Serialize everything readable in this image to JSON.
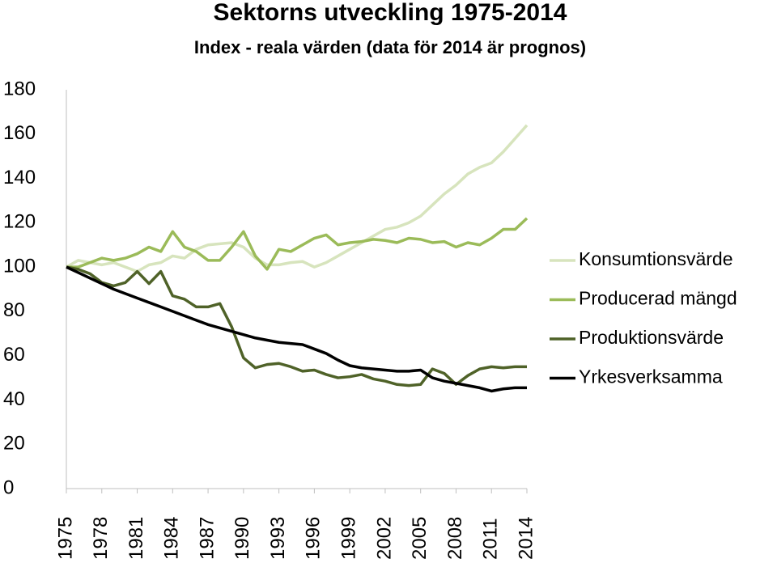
{
  "chart_data": {
    "type": "line",
    "title": "Sektorns utveckling 1975-2014",
    "subtitle": "Index - reala värden (data för 2014 är prognos)",
    "x": [
      1975,
      1976,
      1977,
      1978,
      1979,
      1980,
      1981,
      1982,
      1983,
      1984,
      1985,
      1986,
      1987,
      1988,
      1989,
      1990,
      1991,
      1992,
      1993,
      1994,
      1995,
      1996,
      1997,
      1998,
      1999,
      2000,
      2001,
      2002,
      2003,
      2004,
      2005,
      2006,
      2007,
      2008,
      2009,
      2010,
      2011,
      2012,
      2013,
      2014
    ],
    "xlim": [
      1975,
      2014
    ],
    "xticks": [
      1975,
      1978,
      1981,
      1984,
      1987,
      1990,
      1993,
      1996,
      1999,
      2002,
      2005,
      2008,
      2011,
      2014
    ],
    "ylim": [
      0,
      180
    ],
    "yticks": [
      0,
      20,
      40,
      60,
      80,
      100,
      120,
      140,
      160,
      180
    ],
    "grid": false,
    "legend": "right",
    "series": [
      {
        "name": "Konsumtionsvärde",
        "color": "#d7e4bd",
        "values": [
          100,
          103,
          102,
          101,
          102,
          100,
          98,
          101,
          102,
          105,
          104,
          108,
          110,
          110.5,
          111,
          109,
          104,
          101,
          101,
          102,
          102.5,
          100,
          102,
          105,
          108,
          111,
          114,
          117,
          118,
          120,
          123,
          128,
          133,
          137,
          142,
          145,
          147,
          152,
          158,
          164
        ]
      },
      {
        "name": "Producerad mängd",
        "color": "#9bbb59",
        "values": [
          100,
          100,
          102,
          104,
          103,
          104,
          106,
          109,
          107,
          116,
          109,
          107,
          103,
          103,
          109,
          116,
          105,
          99,
          108,
          107,
          110,
          113,
          114.5,
          110,
          111,
          111.5,
          112.5,
          112,
          111,
          113,
          112.5,
          111,
          111.5,
          109,
          111,
          110,
          113,
          117,
          117,
          122
        ]
      },
      {
        "name": "Produktionsvärde",
        "color": "#4f6228",
        "values": [
          100,
          99,
          97,
          93,
          91.5,
          93,
          98,
          92.5,
          98,
          87,
          85.5,
          82,
          82,
          83.5,
          73,
          59,
          54.5,
          56,
          56.5,
          55,
          53,
          53.5,
          51.5,
          50,
          50.5,
          51.5,
          49.5,
          48.5,
          47,
          46.5,
          47,
          54,
          52,
          47,
          51,
          54,
          55,
          54.5,
          55,
          55
        ]
      },
      {
        "name": "Yrkesverksamma",
        "color": "#000000",
        "values": [
          100,
          97.5,
          95,
          92.5,
          90,
          88,
          86,
          84,
          82,
          80,
          78,
          76,
          74,
          72.5,
          71,
          69.5,
          68,
          67,
          66,
          65.5,
          65,
          63,
          61,
          58,
          55.5,
          54.5,
          54,
          53.5,
          53,
          53,
          53.5,
          50,
          48.5,
          47.5,
          46.5,
          45.5,
          44,
          45,
          45.5,
          45.5
        ]
      }
    ]
  }
}
